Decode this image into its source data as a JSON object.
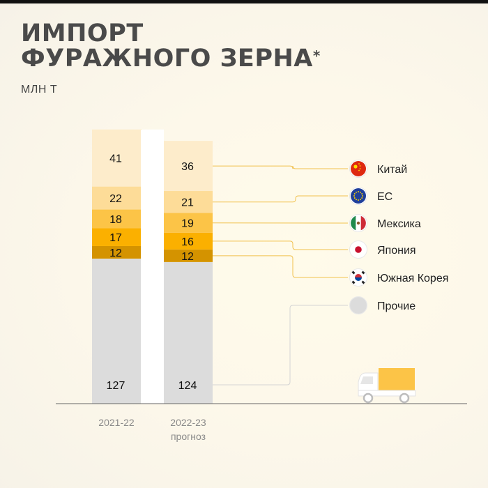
{
  "title_line1": "ИМПОРТ",
  "title_line2": "ФУРАЖНОГО ЗЕРНА",
  "title_mark": "*",
  "unit": "МЛН Т",
  "chart_data": {
    "type": "bar",
    "stacked": true,
    "categories": [
      "2021-22",
      "2022-23"
    ],
    "category_sublabels": [
      "",
      "прогноз"
    ],
    "series": [
      {
        "name": "Прочие",
        "values": [
          127,
          124
        ],
        "color": "#dcdcdc",
        "icon": "globe-icon"
      },
      {
        "name": "Южная Корея",
        "values": [
          12,
          12
        ],
        "color": "#d49300",
        "icon": "south-korea-flag-icon"
      },
      {
        "name": "Япония",
        "values": [
          17,
          16
        ],
        "color": "#fbb000",
        "icon": "japan-flag-icon"
      },
      {
        "name": "Мексика",
        "values": [
          18,
          19
        ],
        "color": "#fcc447",
        "icon": "mexico-flag-icon"
      },
      {
        "name": "ЕС",
        "values": [
          22,
          21
        ],
        "color": "#fddc98",
        "icon": "eu-flag-icon"
      },
      {
        "name": "Китай",
        "values": [
          41,
          36
        ],
        "color": "#fdeccb",
        "icon": "china-flag-icon"
      }
    ],
    "legend_order": [
      "Китай",
      "ЕС",
      "Мексика",
      "Япония",
      "Южная Корея",
      "Прочие"
    ],
    "legend_placement": "right",
    "grid": false
  }
}
